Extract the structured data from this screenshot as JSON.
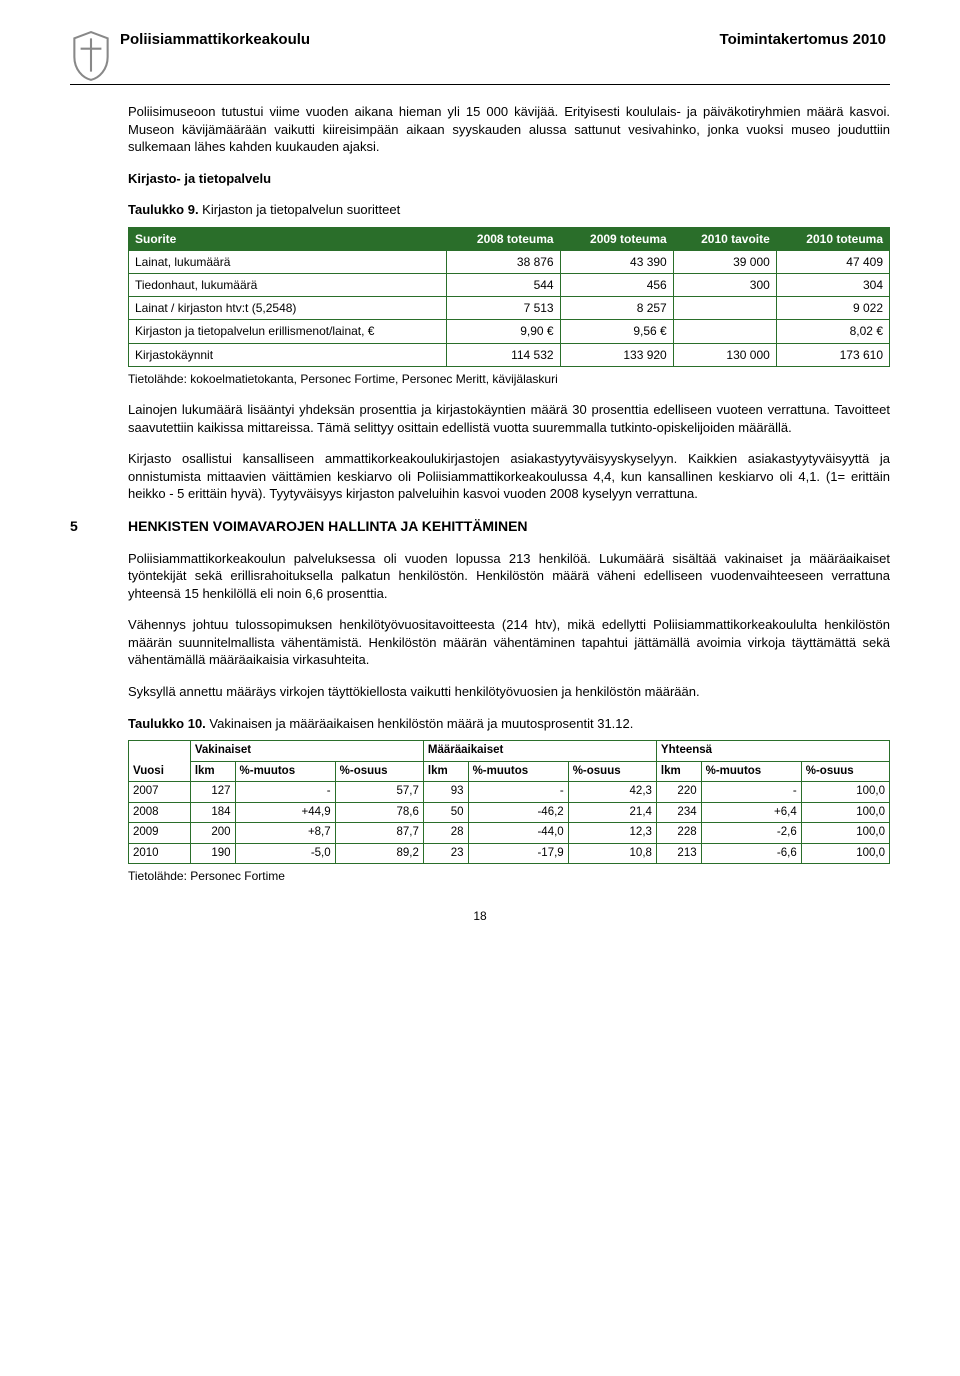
{
  "header": {
    "org": "Poliisiammattikorkeakoulu",
    "docTitle": "Toimintakertomus 2010"
  },
  "intro": {
    "p1": "Poliisimuseoon tutustui viime vuoden aikana hieman yli 15 000 kävijää. Erityisesti koululais- ja päiväkotiryhmien määrä kasvoi. Museon kävijämäärään vaikutti kiireisimpään aikaan syyskauden alussa sattunut vesivahinko, jonka vuoksi museo jouduttiin sulkemaan lähes kahden kuukauden ajaksi.",
    "sub": "Kirjasto- ja tietopalvelu"
  },
  "table1": {
    "caption_bold": "Taulukko 9.",
    "caption_rest": " Kirjaston ja tietopalvelun suoritteet",
    "headers": [
      "Suorite",
      "2008 toteuma",
      "2009 toteuma",
      "2010 tavoite",
      "2010 toteuma"
    ],
    "rows": [
      [
        "Lainat, lukumäärä",
        "38 876",
        "43 390",
        "39 000",
        "47 409"
      ],
      [
        "Tiedonhaut, lukumäärä",
        "544",
        "456",
        "300",
        "304"
      ],
      [
        "Lainat / kirjaston htv:t (5,2548)",
        "7 513",
        "8 257",
        "",
        "9 022"
      ],
      [
        "Kirjaston ja tietopalvelun erillismenot/lainat, €",
        "9,90 €",
        "9,56 €",
        "",
        "8,02 €"
      ],
      [
        "Kirjastokäynnit",
        "114 532",
        "133 920",
        "130 000",
        "173 610"
      ]
    ],
    "source": "Tietolähde: kokoelmatietokanta, Personec Fortime, Personec Meritt, kävijälaskuri",
    "colors": {
      "border": "#2a6e2a",
      "header_bg": "#2a6e2a",
      "header_text": "#ffffff"
    }
  },
  "mid": {
    "p1": "Lainojen lukumäärä lisääntyi yhdeksän prosenttia ja kirjastokäyntien määrä 30 prosenttia edelliseen vuoteen verrattuna. Tavoitteet saavutettiin kaikissa mittareissa. Tämä selittyy osittain edellistä vuotta suuremmalla tutkinto-opiskelijoiden määrällä.",
    "p2": "Kirjasto osallistui kansalliseen ammattikorkeakoulukirjastojen asiakastyytyväisyyskyselyyn. Kaikkien asiakastyytyväisyyttä ja onnistumista mittaavien väittämien keskiarvo oli Poliisiammattikorkeakoulussa 4,4, kun kansallinen keskiarvo oli 4,1. (1= erittäin heikko - 5 erittäin hyvä). Tyytyväisyys kirjaston palveluihin kasvoi vuoden 2008 kyselyyn verrattuna."
  },
  "section5": {
    "num": "5",
    "title": "HENKISTEN VOIMAVAROJEN HALLINTA JA KEHITTÄMINEN",
    "p1": "Poliisiammattikorkeakoulun palveluksessa oli vuoden lopussa 213 henkilöä. Lukumäärä sisältää vakinaiset ja määräaikaiset työntekijät sekä erillisrahoituksella palkatun henkilöstön. Henkilöstön määrä väheni edelliseen vuodenvaihteeseen verrattuna yhteensä 15 henkilöllä eli noin 6,6 prosenttia.",
    "p2": "Vähennys johtuu tulossopimuksen henkilötyövuositavoitteesta (214 htv), mikä edellytti Poliisiammattikorkeakoululta henkilöstön määrän suunnitelmallista vähentämistä. Henkilöstön määrän vähentäminen tapahtui jättämällä avoimia virkoja täyttämättä sekä vähentämällä määräaikaisia virkasuhteita.",
    "p3": "Syksyllä annettu määräys virkojen täyttökiellosta vaikutti henkilötyövuosien ja henkilöstön määrään."
  },
  "table2": {
    "caption_bold": "Taulukko 10.",
    "caption_rest": " Vakinaisen ja määräaikaisen henkilöstön määrä ja muutosprosentit 31.12.",
    "groupHeaders": [
      "Vuosi",
      "Vakinaiset",
      "Määräaikaiset",
      "Yhteensä"
    ],
    "subHeaders": [
      "lkm",
      "%-muutos",
      "%-osuus",
      "lkm",
      "%-muutos",
      "%-osuus",
      "lkm",
      "%-muutos",
      "%-osuus"
    ],
    "rows": [
      [
        "2007",
        "127",
        "-",
        "57,7",
        "93",
        "-",
        "42,3",
        "220",
        "-",
        "100,0"
      ],
      [
        "2008",
        "184",
        "+44,9",
        "78,6",
        "50",
        "-46,2",
        "21,4",
        "234",
        "+6,4",
        "100,0"
      ],
      [
        "2009",
        "200",
        "+8,7",
        "87,7",
        "28",
        "-44,0",
        "12,3",
        "228",
        "-2,6",
        "100,0"
      ],
      [
        "2010",
        "190",
        "-5,0",
        "89,2",
        "23",
        "-17,9",
        "10,8",
        "213",
        "-6,6",
        "100,0"
      ]
    ],
    "source": "Tietolähde: Personec Fortime",
    "colors": {
      "border": "#2a6e2a"
    }
  },
  "pageNumber": "18"
}
